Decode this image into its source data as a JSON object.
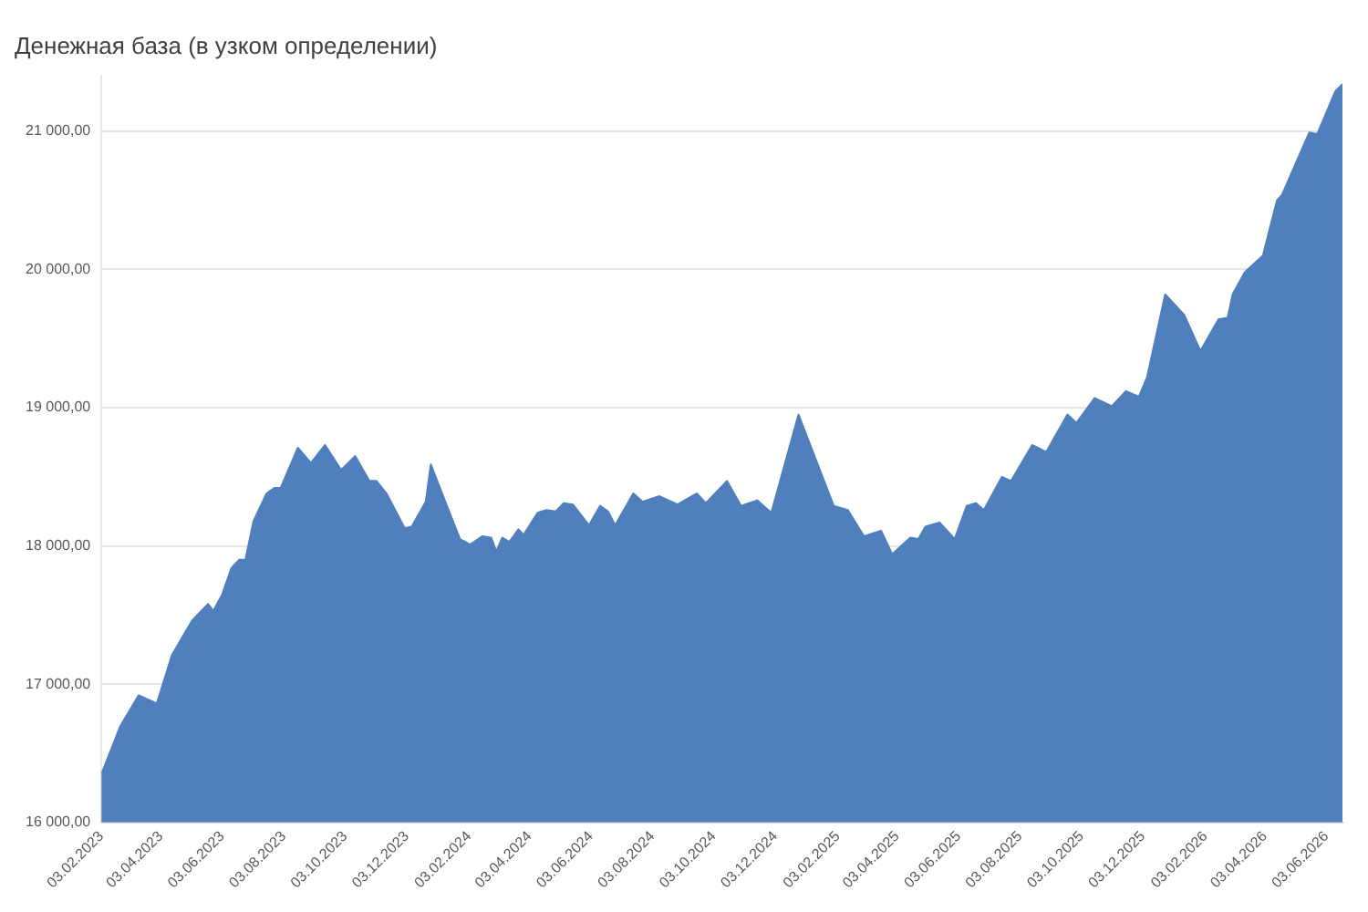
{
  "chart_data": {
    "type": "area",
    "title": "Денежная база (в узком определении)",
    "x": [
      "2023-02-03",
      "2023-02-22",
      "2023-03-12",
      "2023-03-30",
      "2023-04-14",
      "2023-05-04",
      "2023-05-20",
      "2023-05-25",
      "2023-06-03",
      "2023-06-12",
      "2023-06-20",
      "2023-06-26",
      "2023-07-04",
      "2023-07-17",
      "2023-07-25",
      "2023-07-31",
      "2023-08-17",
      "2023-08-30",
      "2023-09-13",
      "2023-09-29",
      "2023-10-13",
      "2023-10-27",
      "2023-11-03",
      "2023-11-13",
      "2023-12-01",
      "2023-12-08",
      "2023-12-22",
      "2023-12-27",
      "2024-01-12",
      "2024-01-25",
      "2024-02-04",
      "2024-02-16",
      "2024-02-25",
      "2024-03-01",
      "2024-03-07",
      "2024-03-14",
      "2024-03-23",
      "2024-03-28",
      "2024-04-11",
      "2024-04-20",
      "2024-04-29",
      "2024-05-07",
      "2024-05-16",
      "2024-06-01",
      "2024-06-12",
      "2024-06-20",
      "2024-06-27",
      "2024-07-15",
      "2024-07-24",
      "2024-08-10",
      "2024-08-28",
      "2024-09-11",
      "2024-09-16",
      "2024-09-25",
      "2024-10-16",
      "2024-10-30",
      "2024-11-15",
      "2024-11-29",
      "2024-12-26",
      "2025-01-30",
      "2025-02-13",
      "2025-03-01",
      "2025-03-18",
      "2025-03-29",
      "2025-04-16",
      "2025-04-24",
      "2025-05-01",
      "2025-05-15",
      "2025-05-30",
      "2025-06-11",
      "2025-06-20",
      "2025-06-28",
      "2025-07-16",
      "2025-07-25",
      "2025-08-15",
      "2025-08-29",
      "2025-09-19",
      "2025-09-28",
      "2025-10-16",
      "2025-11-02",
      "2025-11-16",
      "2025-11-29",
      "2025-12-07",
      "2025-12-25",
      "2026-01-13",
      "2026-01-29",
      "2026-02-16",
      "2026-02-25",
      "2026-03-02",
      "2026-03-14",
      "2026-04-01",
      "2026-04-15",
      "2026-04-20",
      "2026-05-02",
      "2026-05-17",
      "2026-05-25",
      "2026-06-12",
      "2026-06-19"
    ],
    "series": [
      {
        "color": "#4f7fbd",
        "values": [
          16350,
          16700,
          16920,
          16860,
          17210,
          17460,
          17580,
          17530,
          17650,
          17840,
          17900,
          17900,
          18180,
          18380,
          18420,
          18420,
          18710,
          18600,
          18730,
          18550,
          18650,
          18470,
          18470,
          18380,
          18130,
          18140,
          18320,
          18590,
          18290,
          18050,
          18010,
          18070,
          18060,
          17960,
          18060,
          18030,
          18120,
          18080,
          18240,
          18260,
          18250,
          18310,
          18300,
          18150,
          18290,
          18250,
          18150,
          18380,
          18320,
          18360,
          18300,
          18360,
          18380,
          18310,
          18470,
          18290,
          18330,
          18240,
          18950,
          18290,
          18260,
          18070,
          18110,
          17940,
          18060,
          18050,
          18140,
          18170,
          18050,
          18290,
          18310,
          18260,
          18500,
          18470,
          18730,
          18680,
          18950,
          18890,
          19070,
          19010,
          19120,
          19080,
          19220,
          19820,
          19670,
          19410,
          19640,
          19650,
          19820,
          19980,
          20100,
          20500,
          20540,
          20740,
          20990,
          20980,
          21290,
          21340
        ]
      }
    ],
    "xlim": [
      "2023-02-03",
      "2026-06-19"
    ],
    "xticks": [
      {
        "value": "2023-02-03",
        "label": "03.02.2023"
      },
      {
        "value": "2023-04-03",
        "label": "03.04.2023"
      },
      {
        "value": "2023-06-03",
        "label": "03.06.2023"
      },
      {
        "value": "2023-08-03",
        "label": "03.08.2023"
      },
      {
        "value": "2023-10-03",
        "label": "03.10.2023"
      },
      {
        "value": "2023-12-03",
        "label": "03.12.2023"
      },
      {
        "value": "2024-02-03",
        "label": "03.02.2024"
      },
      {
        "value": "2024-04-03",
        "label": "03.04.2024"
      },
      {
        "value": "2024-06-03",
        "label": "03.06.2024"
      },
      {
        "value": "2024-08-03",
        "label": "03.08.2024"
      },
      {
        "value": "2024-10-03",
        "label": "03.10.2024"
      },
      {
        "value": "2024-12-03",
        "label": "03.12.2024"
      },
      {
        "value": "2025-02-03",
        "label": "03.02.2025"
      },
      {
        "value": "2025-04-03",
        "label": "03.04.2025"
      },
      {
        "value": "2025-06-03",
        "label": "03.06.2025"
      },
      {
        "value": "2025-08-03",
        "label": "03.08.2025"
      },
      {
        "value": "2025-10-03",
        "label": "03.10.2025"
      },
      {
        "value": "2025-12-03",
        "label": "03.12.2025"
      },
      {
        "value": "2026-02-03",
        "label": "03.02.2026"
      },
      {
        "value": "2026-04-03",
        "label": "03.04.2026"
      },
      {
        "value": "2026-06-03",
        "label": "03.06.2026"
      }
    ],
    "ylim": [
      16000,
      21400
    ],
    "yticks": [
      {
        "value": 16000,
        "label": "16 000,00"
      },
      {
        "value": 17000,
        "label": "17 000,00"
      },
      {
        "value": 18000,
        "label": "18 000,00"
      },
      {
        "value": 19000,
        "label": "19 000,00"
      },
      {
        "value": 20000,
        "label": "20 000,00"
      },
      {
        "value": 21000,
        "label": "21 000,00"
      }
    ],
    "grid": "y",
    "legend": false
  }
}
